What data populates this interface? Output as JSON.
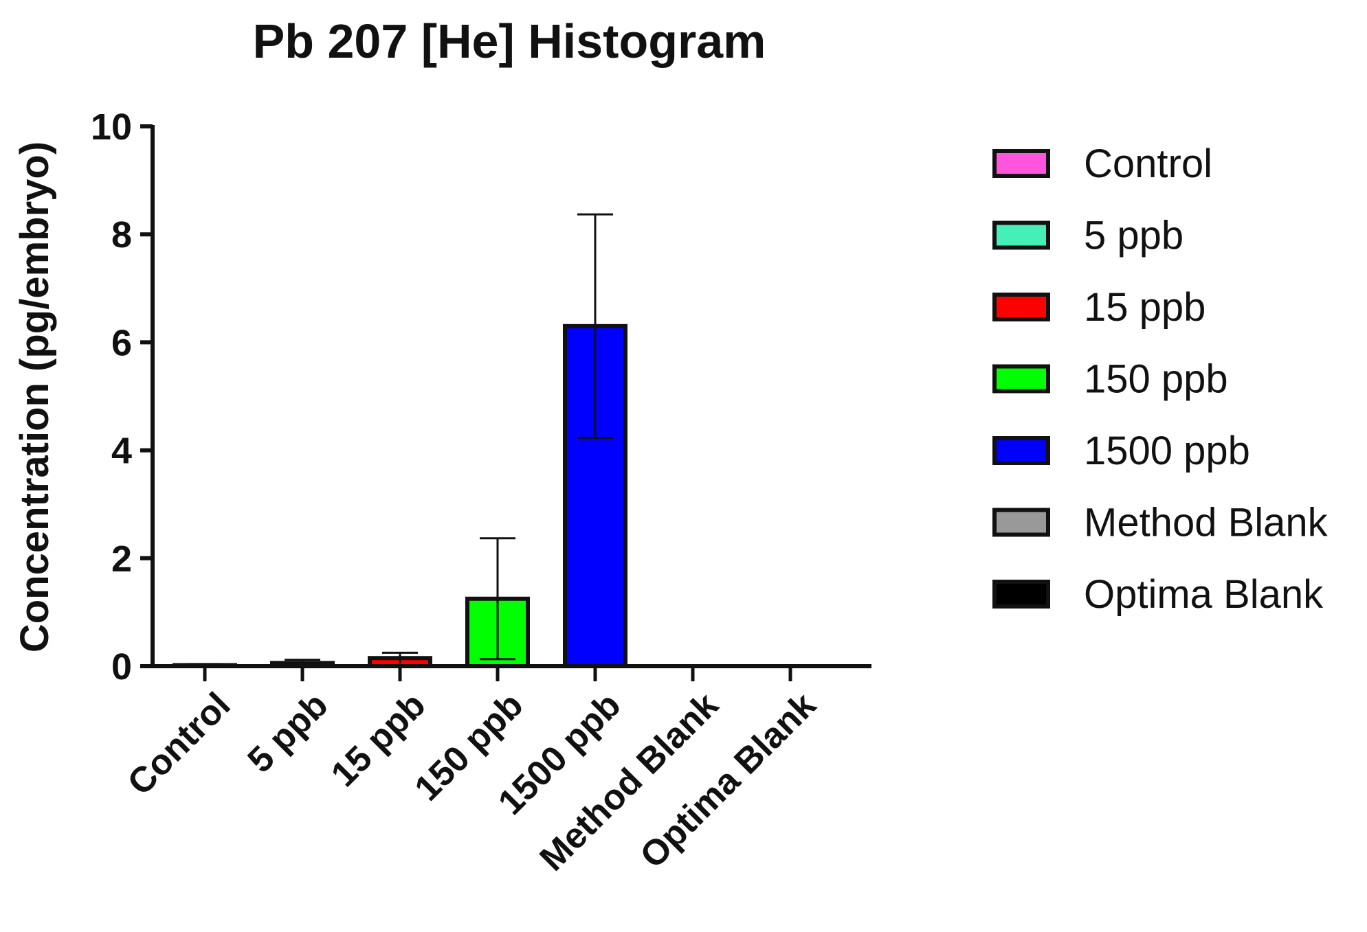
{
  "chart_data": {
    "type": "bar",
    "title": "Pb 207 [He] Histogram",
    "xlabel": "",
    "ylabel": "Concentration (pg/embryo)",
    "ylim": [
      0,
      10
    ],
    "yticks": [
      "0",
      "2",
      "4",
      "6",
      "8",
      "10"
    ],
    "categories": [
      "Control",
      "5 ppb",
      "15 ppb",
      "150 ppb",
      "1500 ppb",
      "Method Blank",
      "Optima Blank"
    ],
    "values": [
      0.02,
      0.06,
      0.15,
      1.25,
      6.3,
      0.0,
      0.0
    ],
    "error": [
      0.02,
      0.06,
      0.1,
      1.12,
      2.07,
      0.0,
      0.0
    ],
    "colors": [
      "#ff55dd",
      "#44f0b8",
      "#ff0000",
      "#00ff00",
      "#0000ff",
      "#999999",
      "#000000"
    ],
    "legend": {
      "placement": "right",
      "entries": [
        "Control",
        "5 ppb",
        "15 ppb",
        "150 ppb",
        "1500 ppb",
        "Method Blank",
        "Optima Blank"
      ]
    },
    "grid": false
  }
}
